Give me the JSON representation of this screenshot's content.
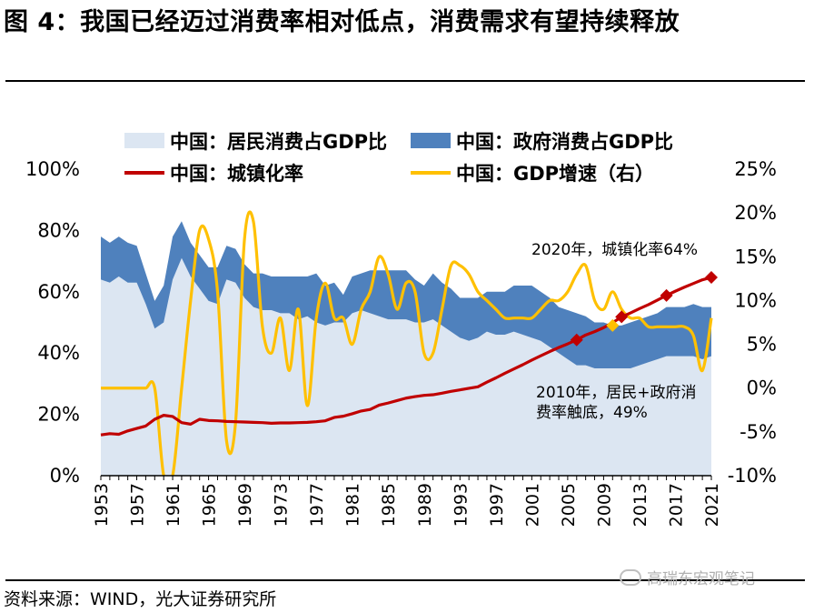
{
  "title": "图 4：我国已经迈过消费率相对低点，消费需求有望持续释放",
  "source": "资料来源：WIND，光大证券研究所",
  "watermark": "高瑞东宏观笔记",
  "chart_data": {
    "type": "area+line",
    "x": [
      1953,
      1954,
      1955,
      1956,
      1957,
      1958,
      1959,
      1960,
      1961,
      1962,
      1963,
      1964,
      1965,
      1966,
      1967,
      1968,
      1969,
      1970,
      1971,
      1972,
      1973,
      1974,
      1975,
      1976,
      1977,
      1978,
      1979,
      1980,
      1981,
      1982,
      1983,
      1984,
      1985,
      1986,
      1987,
      1988,
      1989,
      1990,
      1991,
      1992,
      1993,
      1994,
      1995,
      1996,
      1997,
      1998,
      1999,
      2000,
      2001,
      2002,
      2003,
      2004,
      2005,
      2006,
      2007,
      2008,
      2009,
      2010,
      2011,
      2012,
      2013,
      2014,
      2015,
      2016,
      2017,
      2018,
      2019,
      2020,
      2021
    ],
    "xticks": [
      "1953",
      "1957",
      "1961",
      "1965",
      "1969",
      "1973",
      "1977",
      "1981",
      "1985",
      "1989",
      "1993",
      "1997",
      "2001",
      "2005",
      "2009",
      "2013",
      "2017",
      "2021"
    ],
    "yticks_left": [
      "0%",
      "20%",
      "40%",
      "60%",
      "80%",
      "100%"
    ],
    "yticks_right": [
      "-10%",
      "-5%",
      "0%",
      "5%",
      "10%",
      "15%",
      "20%",
      "25%"
    ],
    "ylim_left": [
      0,
      100
    ],
    "ylim_right": [
      -10,
      25
    ],
    "series": [
      {
        "name": "中国：居民消费占GDP比",
        "axis": "left",
        "style": "area",
        "color": "#dce6f2",
        "values": [
          64,
          63,
          65,
          63,
          63,
          56,
          48,
          50,
          64,
          71,
          65,
          61,
          57,
          56,
          64,
          63,
          58,
          55,
          54,
          54,
          53,
          53,
          51,
          52,
          50,
          49,
          50,
          50,
          53,
          54,
          53,
          52,
          51,
          51,
          51,
          50,
          50,
          51,
          49,
          47,
          45,
          44,
          45,
          47,
          46,
          46,
          47,
          46,
          45,
          44,
          42,
          40,
          38,
          36,
          36,
          35,
          35,
          35,
          35,
          35,
          36,
          37,
          38,
          39,
          39,
          39,
          39,
          38,
          39
        ]
      },
      {
        "name": "中国：政府消费占GDP比",
        "axis": "left",
        "style": "stacked-area",
        "color": "#4f81bd",
        "values": [
          14,
          13,
          13,
          13,
          12,
          10,
          9,
          12,
          14,
          12,
          11,
          11,
          11,
          12,
          11,
          11,
          11,
          11,
          12,
          11,
          12,
          12,
          14,
          13,
          16,
          13,
          13,
          9,
          12,
          12,
          14,
          15,
          16,
          16,
          16,
          14,
          12,
          15,
          14,
          14,
          13,
          14,
          13,
          13,
          14,
          14,
          15,
          16,
          17,
          16,
          16,
          15,
          16,
          17,
          16,
          15,
          15,
          14,
          14,
          15,
          15,
          15,
          15,
          16,
          16,
          16,
          17,
          17,
          16
        ]
      },
      {
        "name": "中国：城镇化率",
        "axis": "left",
        "style": "line",
        "color": "#c00000",
        "values": [
          13.3,
          13.7,
          13.5,
          14.6,
          15.4,
          16.2,
          18.4,
          19.7,
          19.3,
          17.3,
          16.8,
          18.4,
          18.0,
          17.9,
          17.7,
          17.6,
          17.5,
          17.4,
          17.3,
          17.1,
          17.2,
          17.2,
          17.3,
          17.4,
          17.6,
          17.9,
          19.0,
          19.4,
          20.2,
          21.1,
          21.6,
          23.0,
          23.7,
          24.5,
          25.3,
          25.8,
          26.2,
          26.4,
          26.9,
          27.5,
          28.0,
          28.5,
          29.0,
          30.5,
          31.9,
          33.4,
          34.8,
          36.2,
          37.7,
          39.1,
          40.5,
          41.8,
          43.0,
          44.3,
          45.9,
          47.0,
          48.3,
          49.9,
          51.8,
          53.1,
          54.5,
          55.8,
          57.3,
          58.8,
          60.2,
          61.5,
          62.7,
          63.9,
          64.7
        ]
      },
      {
        "name": "中国：GDP增速（右）",
        "axis": "right",
        "style": "line",
        "color": "#ffc000",
        "values": [
          0,
          0,
          0,
          0,
          0,
          0,
          0,
          -10,
          -10,
          0,
          10,
          18,
          17,
          11,
          -6,
          -4,
          17,
          19,
          7,
          4,
          8,
          2,
          9,
          -2,
          8,
          12,
          8,
          8,
          5,
          9,
          11,
          15,
          13,
          9,
          12,
          11,
          4,
          4,
          9,
          14,
          14,
          13,
          11,
          10,
          9,
          8,
          8,
          8,
          8,
          9,
          10,
          10,
          11,
          13,
          14,
          10,
          9,
          11,
          9,
          8,
          8,
          7,
          7,
          7,
          7,
          7,
          6,
          2,
          8
        ]
      }
    ],
    "highlights": [
      {
        "series": "中国：城镇化率",
        "years": [
          2006,
          2011,
          2016,
          2021
        ],
        "values": [
          44.3,
          51.8,
          58.8,
          64.7
        ],
        "color": "#c00000"
      },
      {
        "series": "中国：居民+政府消费",
        "years": [
          2010
        ],
        "values": [
          49
        ],
        "color": "#ffc000"
      }
    ],
    "annotations": [
      {
        "text": "2020年，城镇化率64%"
      },
      {
        "line1": "2010年，居民+政府消",
        "line2": "费率触底，49%"
      }
    ],
    "legend_position": "top"
  }
}
